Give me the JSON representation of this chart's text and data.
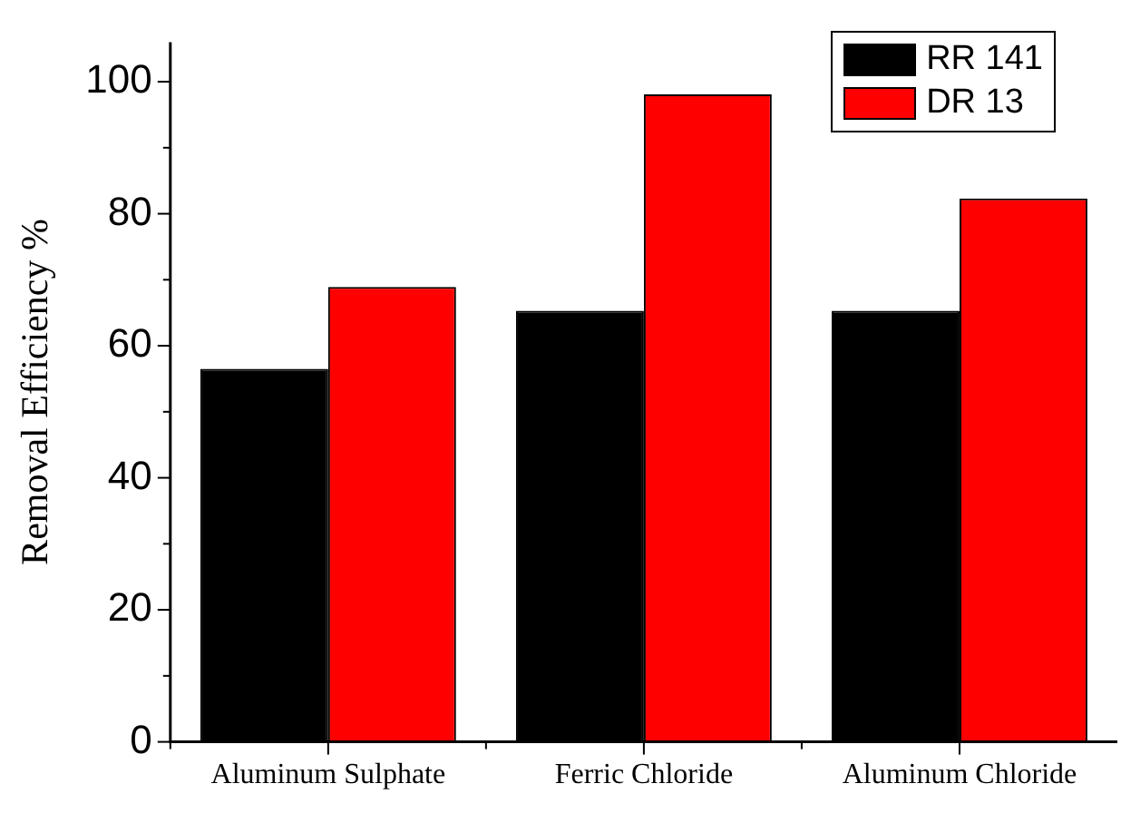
{
  "chart_data": {
    "type": "bar",
    "ylabel": "Removal Efficiency %",
    "categories": [
      "Aluminum Sulphate",
      "Ferric Chloride",
      "Aluminum Chloride"
    ],
    "series": [
      {
        "name": "RR 141",
        "color": "#000000",
        "values": [
          56.5,
          65.3,
          65.3
        ]
      },
      {
        "name": "DR 13",
        "color": "#ff0000",
        "values": [
          68.9,
          98.1,
          82.3
        ]
      }
    ],
    "ylim": [
      0,
      106
    ],
    "yticks": [
      0,
      {
        "value": 10,
        "label": null
      },
      20,
      {
        "value": 30,
        "label": null
      },
      40,
      {
        "value": 50,
        "label": null
      },
      60,
      {
        "value": 70,
        "label": null
      },
      80,
      {
        "value": 90,
        "label": null
      },
      100
    ],
    "grid": false,
    "legend": "top right"
  }
}
